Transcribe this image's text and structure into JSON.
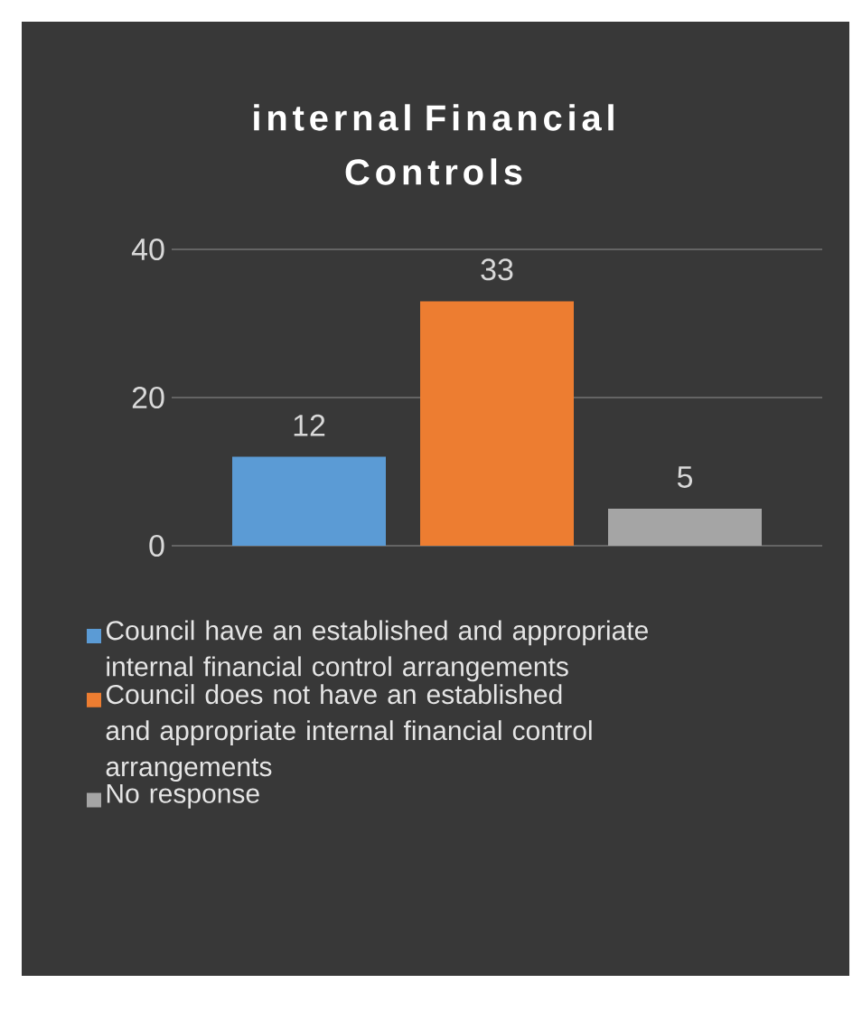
{
  "chart_data": {
    "type": "bar",
    "title": "internal Financial Controls",
    "categories": [
      null
    ],
    "series": [
      {
        "name": "Council have an established and appropriate internal financial control arrangements",
        "color": "#5b9bd5",
        "values": [
          12
        ]
      },
      {
        "name": "Council does not have an established and appropriate internal financial control arrangements",
        "color": "#ed7d31",
        "values": [
          33
        ]
      },
      {
        "name": "No response",
        "color": "#a5a5a5",
        "values": [
          5
        ]
      }
    ],
    "ylim": [
      0,
      40
    ],
    "yticks": [
      0,
      20,
      40
    ],
    "grid": "y",
    "legend": "bottom",
    "tick_labels": "y",
    "data_labels": true
  }
}
